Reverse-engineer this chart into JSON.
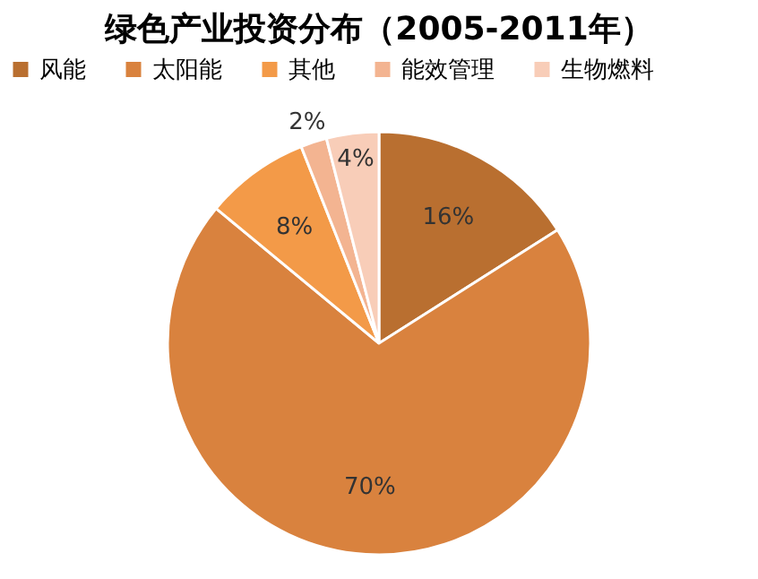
{
  "chart_data": {
    "type": "pie",
    "title": "绿色产业投资分布（2005-2011年）",
    "categories": [
      "风能",
      "太阳能",
      "其他",
      "能效管理",
      "生物燃料"
    ],
    "values": [
      16,
      70,
      8,
      2,
      4
    ],
    "colors": [
      "#b96f30",
      "#d9823e",
      "#f39a48",
      "#f3b491",
      "#f8cdb8"
    ],
    "value_labels": [
      "16%",
      "70%",
      "8%",
      "2%",
      "4%"
    ],
    "legend": "top"
  }
}
